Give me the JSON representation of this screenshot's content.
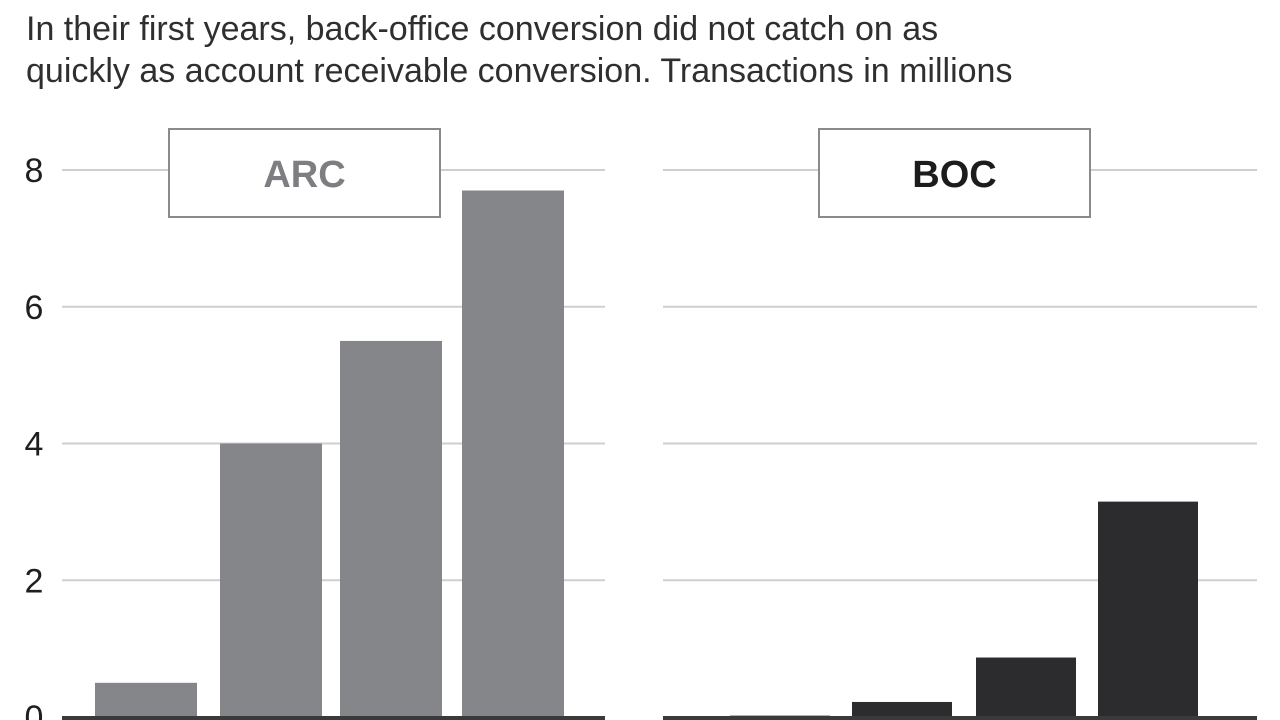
{
  "subtitle_lines": [
    "In their first years, back-office conversion did not catch on as",
    "quickly as account receivable conversion. Transactions in millions"
  ],
  "chart_data": [
    {
      "type": "bar",
      "title": "ARC",
      "categories": [
        "",
        "",
        "",
        ""
      ],
      "values": [
        0.5,
        4.0,
        5.5,
        7.7
      ],
      "ylim": [
        0,
        8
      ],
      "yticks": [
        "0",
        "2",
        "4",
        "6",
        "8"
      ],
      "grid": true,
      "bar_color": "#85868a",
      "label_color": "#7d7e82"
    },
    {
      "type": "bar",
      "title": "BOC",
      "categories": [
        "",
        "",
        "",
        ""
      ],
      "values": [
        0.02,
        0.22,
        0.87,
        3.15
      ],
      "ylim": [
        0,
        8
      ],
      "grid": true,
      "bar_color": "#2c2c2e",
      "label_color": "#1c1c1c"
    }
  ],
  "colors": {
    "gridline": "#cfcfcf",
    "baseline": "#3a3a3a",
    "label_box_border": "#8a8a8a"
  }
}
